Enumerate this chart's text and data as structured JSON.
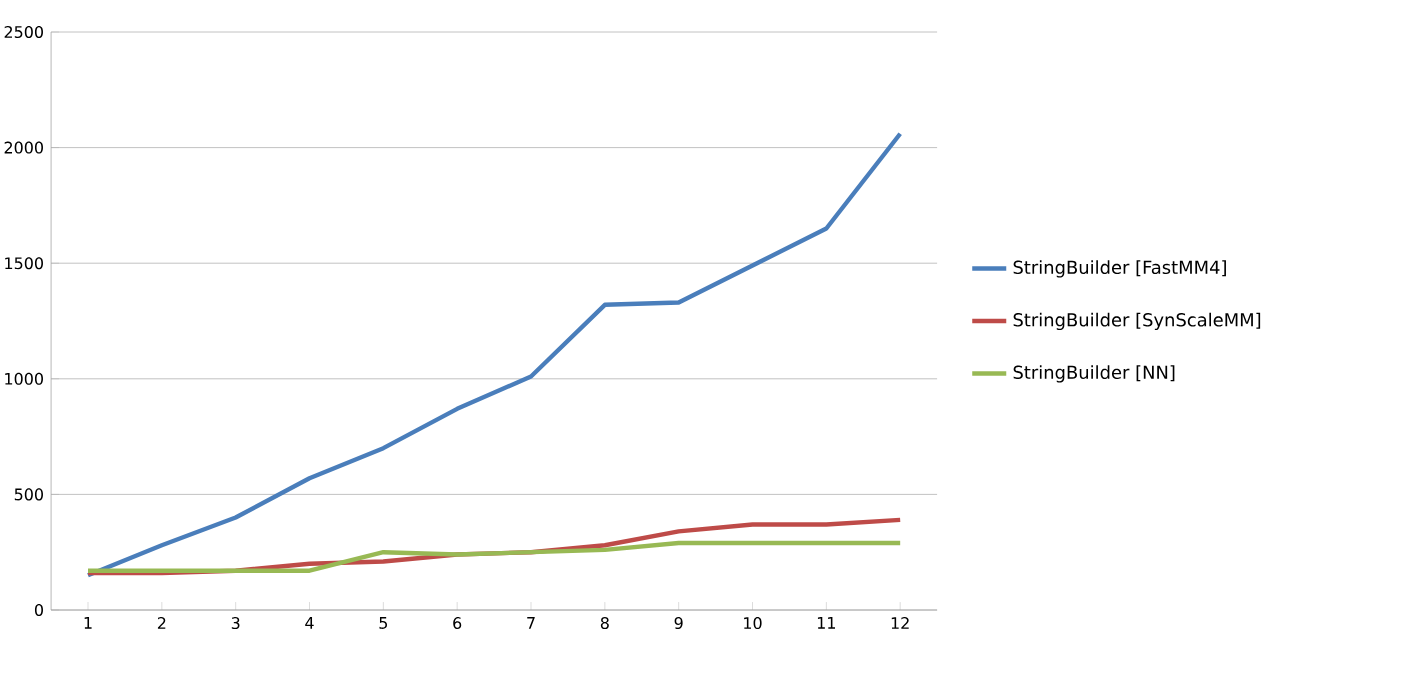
{
  "chart_data": {
    "type": "line",
    "categories": [
      "1",
      "2",
      "3",
      "4",
      "5",
      "6",
      "7",
      "8",
      "9",
      "10",
      "11",
      "12"
    ],
    "series": [
      {
        "name": "StringBuilder [FastMM4]",
        "color": "#4a7ebb",
        "values": [
          150,
          280,
          400,
          570,
          700,
          870,
          1010,
          1320,
          1330,
          1490,
          1650,
          2060
        ]
      },
      {
        "name": "StringBuilder [SynScaleMM]",
        "color": "#be4b48",
        "values": [
          160,
          160,
          170,
          200,
          210,
          240,
          250,
          280,
          340,
          370,
          370,
          390
        ]
      },
      {
        "name": "StringBuilder [NN]",
        "color": "#98b954",
        "values": [
          170,
          170,
          170,
          170,
          250,
          240,
          250,
          260,
          290,
          290,
          290,
          290
        ]
      }
    ],
    "ylim": [
      0,
      2500
    ],
    "yticks": [
      0,
      500,
      1000,
      1500,
      2000,
      2500
    ],
    "grid": "y",
    "legend": "right",
    "marker": "none",
    "line_style": "solid"
  }
}
